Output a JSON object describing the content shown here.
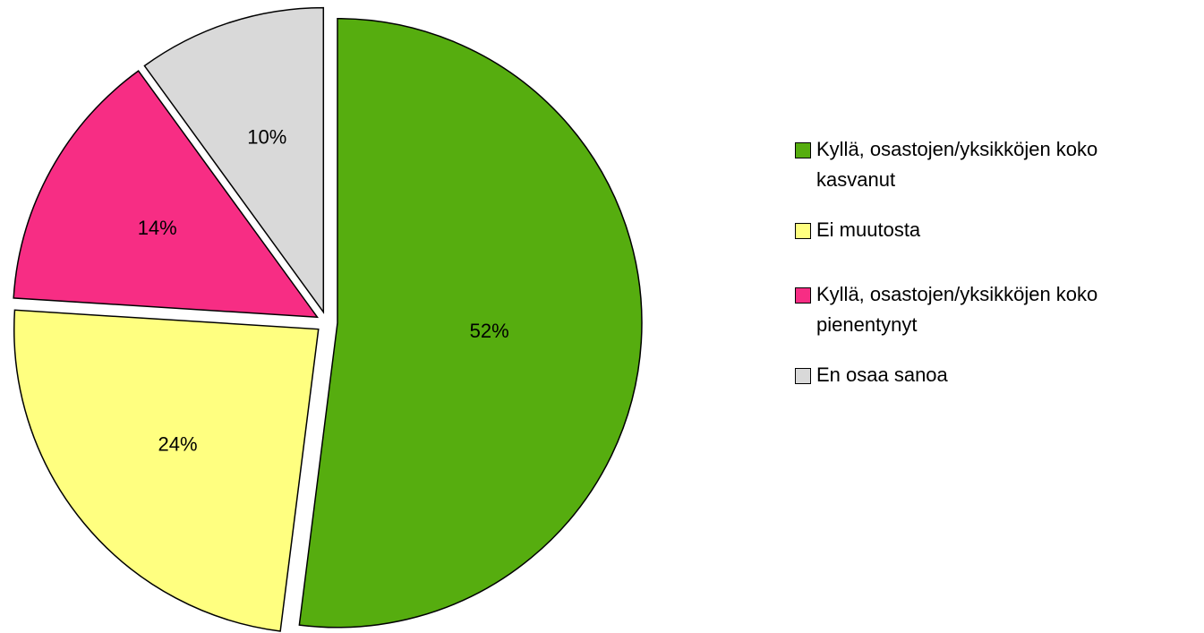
{
  "chart_data": {
    "type": "pie",
    "categories": [
      "Kyllä, osastojen/yksikköjen koko kasvanut",
      "Ei muutosta",
      "Kyllä, osastojen/yksikköjen koko pienentynyt",
      "En osaa sanoa"
    ],
    "values": [
      52,
      24,
      14,
      10
    ],
    "value_labels": [
      "52%",
      "24%",
      "14%",
      "10%"
    ],
    "colors": [
      "#56ad0f",
      "#ffff80",
      "#f72d84",
      "#d9d9d9"
    ],
    "legend": "right"
  }
}
